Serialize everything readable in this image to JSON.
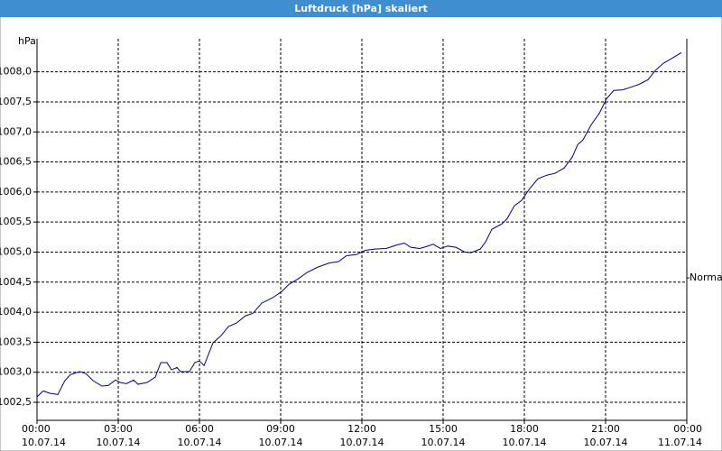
{
  "chart_data": {
    "type": "line",
    "title": "Luftdruck [hPa] skaliert",
    "y_unit": "hPa",
    "x": [
      0,
      0.23,
      0.47,
      0.77,
      1.03,
      1.23,
      1.57,
      1.8,
      2.07,
      2.4,
      2.63,
      2.9,
      3.07,
      3.3,
      3.57,
      3.73,
      4.07,
      4.37,
      4.57,
      4.8,
      4.97,
      5.17,
      5.3,
      5.63,
      5.83,
      6,
      6.17,
      6.5,
      6.8,
      7.07,
      7.37,
      7.7,
      7.97,
      8.3,
      8.7,
      9.03,
      9.3,
      9.63,
      9.97,
      10.37,
      10.8,
      11.13,
      11.43,
      11.8,
      12.13,
      12.47,
      12.9,
      13.3,
      13.57,
      13.8,
      14.13,
      14.37,
      14.63,
      14.9,
      15.17,
      15.47,
      15.8,
      16.03,
      16.37,
      16.57,
      16.8,
      17.17,
      17.37,
      17.63,
      17.9,
      18.17,
      18.5,
      18.83,
      19.13,
      19.47,
      19.77,
      19.97,
      20.17,
      20.47,
      20.77,
      21.03,
      21.3,
      21.63,
      21.97,
      22.23,
      22.57,
      22.83,
      23.13,
      23.47,
      23.8
    ],
    "values": [
      1002.59,
      1002.69,
      1002.65,
      1002.63,
      1002.86,
      1002.96,
      1003.01,
      1002.98,
      1002.86,
      1002.77,
      1002.78,
      1002.87,
      1002.83,
      1002.81,
      1002.87,
      1002.8,
      1002.83,
      1002.92,
      1003.16,
      1003.16,
      1003.04,
      1003.08,
      1003.01,
      1003.01,
      1003.16,
      1003.19,
      1003.11,
      1003.49,
      1003.61,
      1003.76,
      1003.82,
      1003.94,
      1003.98,
      1004.15,
      1004.24,
      1004.34,
      1004.46,
      1004.55,
      1004.66,
      1004.75,
      1004.82,
      1004.84,
      1004.94,
      1004.96,
      1005.03,
      1005.05,
      1005.06,
      1005.12,
      1005.15,
      1005.08,
      1005.06,
      1005.09,
      1005.13,
      1005.06,
      1005.1,
      1005.08,
      1005.0,
      1004.99,
      1005.05,
      1005.17,
      1005.38,
      1005.47,
      1005.56,
      1005.77,
      1005.86,
      1006.04,
      1006.22,
      1006.28,
      1006.31,
      1006.4,
      1006.58,
      1006.79,
      1006.87,
      1007.12,
      1007.31,
      1007.55,
      1007.69,
      1007.7,
      1007.75,
      1007.79,
      1007.87,
      1008.02,
      1008.14,
      1008.23,
      1008.32
    ],
    "color": "#000080",
    "xlim": [
      0,
      24
    ],
    "xticks": [
      {
        "value": 0,
        "label": "00:00",
        "date": "10.07.14"
      },
      {
        "value": 3,
        "label": "03:00",
        "date": "10.07.14"
      },
      {
        "value": 6,
        "label": "06:00",
        "date": "10.07.14"
      },
      {
        "value": 9,
        "label": "09:00",
        "date": "10.07.14"
      },
      {
        "value": 12,
        "label": "12:00",
        "date": "10.07.14"
      },
      {
        "value": 15,
        "label": "15:00",
        "date": "10.07.14"
      },
      {
        "value": 18,
        "label": "18:00",
        "date": "10.07.14"
      },
      {
        "value": 21,
        "label": "21:00",
        "date": "10.07.14"
      },
      {
        "value": 24,
        "label": "00:00",
        "date": "11.07.14"
      }
    ],
    "ylim": [
      1002.2,
      1008.55
    ],
    "yticks": [
      {
        "value": 1002.5,
        "label": "1002,5"
      },
      {
        "value": 1003,
        "label": "1003,0"
      },
      {
        "value": 1003.5,
        "label": "1003,5"
      },
      {
        "value": 1004,
        "label": "1004,0"
      },
      {
        "value": 1004.5,
        "label": "1004,5"
      },
      {
        "value": 1005,
        "label": "1005,0"
      },
      {
        "value": 1005.5,
        "label": "1005,5"
      },
      {
        "value": 1006,
        "label": "1006,0"
      },
      {
        "value": 1006.5,
        "label": "1006,5"
      },
      {
        "value": 1007,
        "label": "1007,0"
      },
      {
        "value": 1007.5,
        "label": "1007,5"
      },
      {
        "value": 1008,
        "label": "1008,0"
      }
    ],
    "grid": true,
    "reference": {
      "label": "Normal",
      "value": 1004.57
    }
  }
}
